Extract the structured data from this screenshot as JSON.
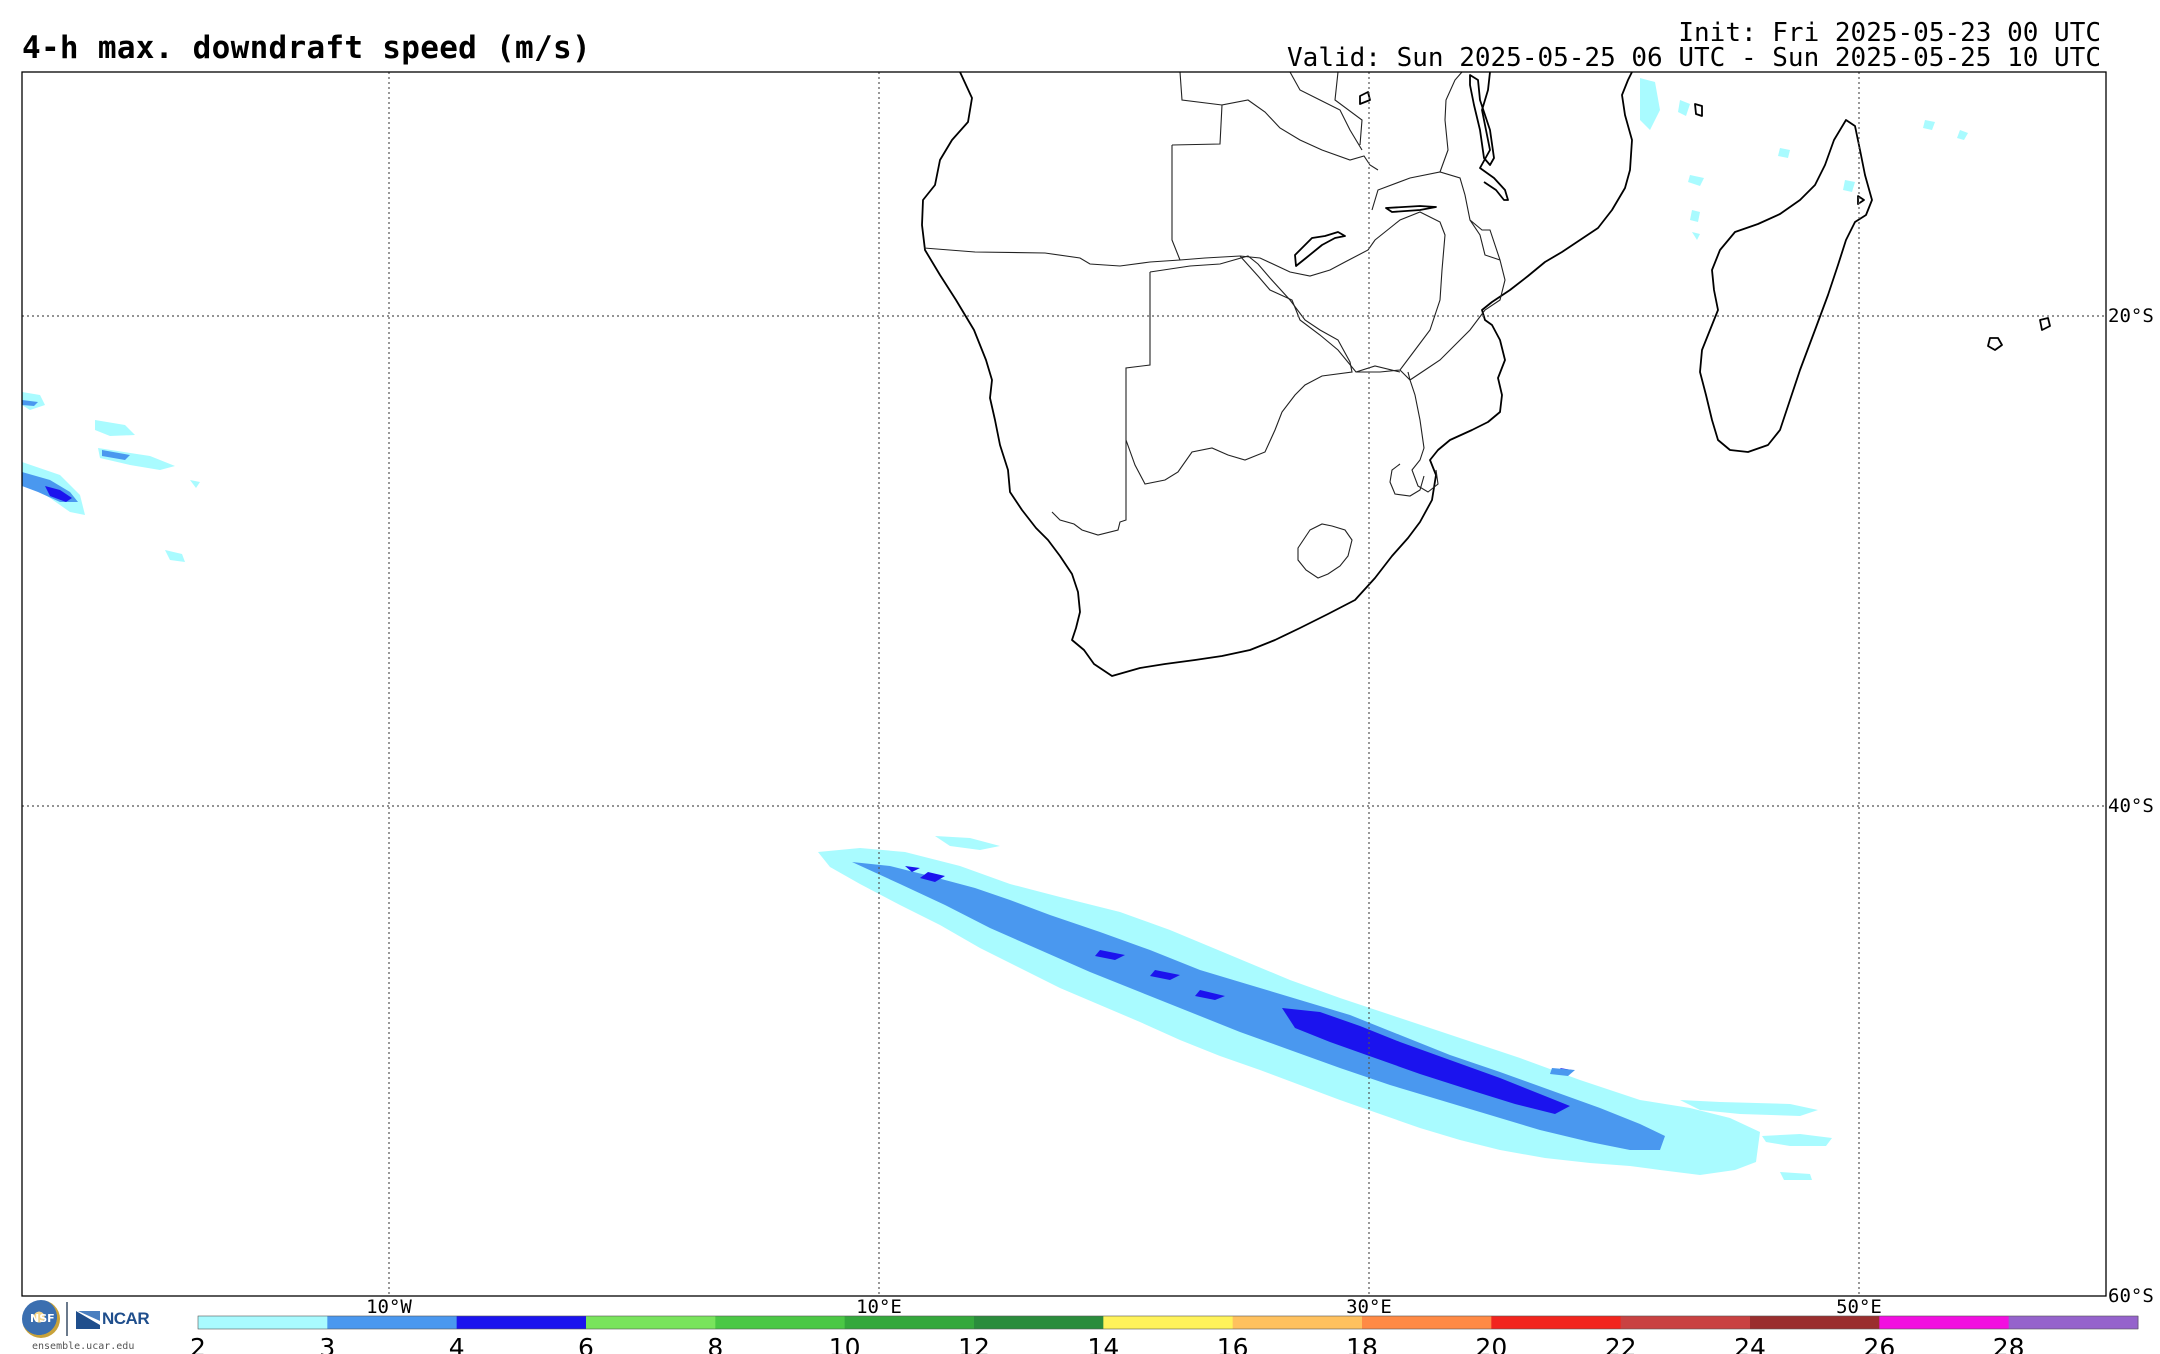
{
  "header": {
    "title": "4-h max. downdraft speed (m/s)",
    "init": "Init: Fri 2025-05-23 00 UTC",
    "valid": "Valid: Sun 2025-05-25 06 UTC - Sun 2025-05-25 10 UTC"
  },
  "map": {
    "lon_range": [
      -25,
      60
    ],
    "lat_range": [
      -60,
      -10
    ],
    "lon_labels": [
      {
        "lon": -10,
        "label": "10°W"
      },
      {
        "lon": 10,
        "label": "10°E"
      },
      {
        "lon": 30,
        "label": "30°E"
      },
      {
        "lon": 50,
        "label": "50°E"
      }
    ],
    "lat_labels": [
      {
        "lat": -20,
        "label": "20°S"
      },
      {
        "lat": -40,
        "label": "40°S"
      },
      {
        "lat": -60,
        "label": "60°S"
      }
    ]
  },
  "colorbar": {
    "ticks": [
      "2",
      "3",
      "4",
      "6",
      "8",
      "10",
      "12",
      "14",
      "16",
      "18",
      "20",
      "22",
      "24",
      "26",
      "28"
    ],
    "colors": [
      "#a9fbff",
      "#4a98ef",
      "#1b13ee",
      "#79e45c",
      "#4bc845",
      "#34a83c",
      "#2a8c3c",
      "#fff35a",
      "#ffc15e",
      "#ff8a45",
      "#f2251e",
      "#c94242",
      "#9a2e2e",
      "#f20fe0",
      "#9563cc"
    ]
  },
  "footer": {
    "nsf_label": "NSF",
    "ncar_label": "NCAR",
    "url": "ensemble.ucar.edu"
  }
}
